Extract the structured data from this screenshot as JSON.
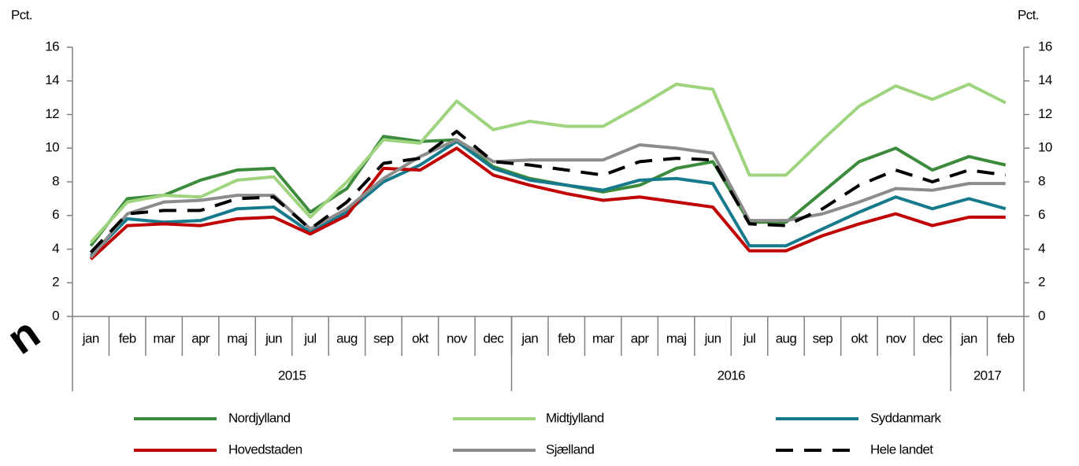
{
  "chart_data": {
    "type": "line",
    "y_label": "Pct.",
    "y2_label": "Pct.",
    "annotation": "n",
    "categories": [
      "jan",
      "feb",
      "mar",
      "apr",
      "maj",
      "jun",
      "jul",
      "aug",
      "sep",
      "okt",
      "nov",
      "dec",
      "jan",
      "feb",
      "mar",
      "apr",
      "maj",
      "jun",
      "jul",
      "aug",
      "sep",
      "okt",
      "nov",
      "dec",
      "jan",
      "feb"
    ],
    "year_groups": [
      {
        "label": "2015",
        "span": 12
      },
      {
        "label": "2016",
        "span": 12
      },
      {
        "label": "2017",
        "span": 2
      }
    ],
    "ylim": [
      0,
      16
    ],
    "yticks": [
      0,
      2,
      4,
      6,
      8,
      10,
      12,
      14,
      16
    ],
    "y2lim": [
      0,
      16
    ],
    "y2ticks": [
      0,
      2,
      4,
      6,
      8,
      10,
      12,
      14,
      16
    ],
    "series": [
      {
        "name": "Nordjylland",
        "color": "#3c8a3c",
        "dashed": false,
        "values": [
          4.2,
          7.0,
          7.2,
          8.1,
          8.7,
          8.8,
          6.2,
          7.6,
          10.7,
          10.4,
          10.5,
          8.9,
          8.2,
          7.8,
          7.4,
          7.8,
          8.8,
          9.2,
          5.6,
          5.6,
          7.4,
          9.2,
          10.0,
          8.7,
          9.5,
          9.0
        ]
      },
      {
        "name": "Midtjylland",
        "color": "#9fd47f",
        "dashed": false,
        "values": [
          4.4,
          6.8,
          7.2,
          7.1,
          8.1,
          8.3,
          5.9,
          8.0,
          10.5,
          10.3,
          12.8,
          11.1,
          11.6,
          11.3,
          11.3,
          12.5,
          13.8,
          13.5,
          8.4,
          8.4,
          10.5,
          12.5,
          13.7,
          12.9,
          13.8,
          12.7
        ]
      },
      {
        "name": "Syddanmark",
        "color": "#167a8c",
        "dashed": false,
        "values": [
          3.6,
          5.8,
          5.6,
          5.7,
          6.4,
          6.5,
          5.0,
          6.2,
          8.0,
          9.0,
          10.4,
          8.8,
          8.1,
          7.8,
          7.5,
          8.1,
          8.2,
          7.9,
          4.2,
          4.2,
          5.2,
          6.2,
          7.1,
          6.4,
          7.0,
          6.4
        ]
      },
      {
        "name": "Hovedstaden",
        "color": "#c00000",
        "dashed": false,
        "values": [
          3.4,
          5.4,
          5.5,
          5.4,
          5.8,
          5.9,
          4.9,
          6.0,
          8.8,
          8.7,
          10.0,
          8.4,
          7.8,
          7.3,
          6.9,
          7.1,
          6.8,
          6.5,
          3.9,
          3.9,
          4.8,
          5.5,
          6.1,
          5.4,
          5.9,
          5.9
        ]
      },
      {
        "name": "Sjælland",
        "color": "#8c8c8c",
        "dashed": false,
        "values": [
          3.5,
          6.1,
          6.8,
          6.9,
          7.2,
          7.2,
          5.2,
          6.4,
          8.2,
          9.5,
          10.5,
          9.2,
          9.3,
          9.3,
          9.3,
          10.2,
          10.0,
          9.7,
          5.7,
          5.7,
          6.1,
          6.8,
          7.6,
          7.5,
          7.9,
          7.9
        ]
      },
      {
        "name": "Hele landet",
        "color": "#000000",
        "dashed": true,
        "values": [
          3.8,
          6.1,
          6.3,
          6.3,
          7.0,
          7.1,
          5.2,
          6.8,
          9.1,
          9.4,
          11.0,
          9.2,
          9.0,
          8.7,
          8.4,
          9.2,
          9.4,
          9.3,
          5.5,
          5.4,
          6.4,
          7.8,
          8.7,
          8.0,
          8.7,
          8.4
        ]
      }
    ]
  }
}
